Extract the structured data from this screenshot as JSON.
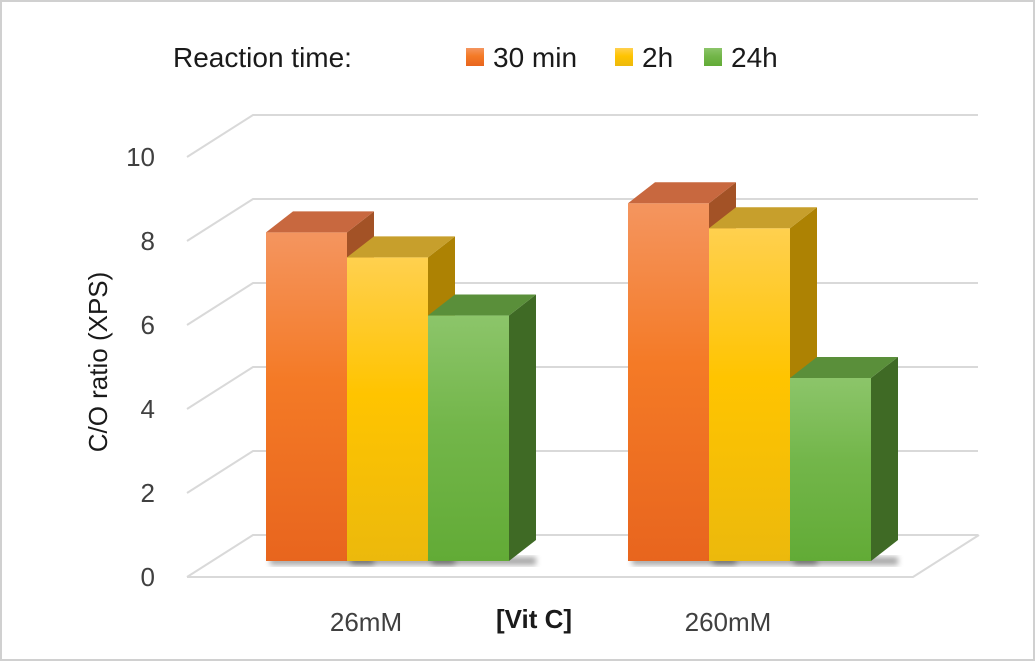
{
  "chart_data": {
    "type": "bar",
    "style": "3d-clustered-column",
    "legend_title": "Reaction time:",
    "categories": [
      "26mM",
      "260mM"
    ],
    "series": [
      {
        "name": "30 min",
        "values": [
          7.9,
          8.6
        ],
        "color": "#f07a2c",
        "top_color": "#c8683f",
        "side_color": "#a35226"
      },
      {
        "name": "2h",
        "values": [
          7.3,
          8.0
        ],
        "color": "#ffc526",
        "top_color": "#c79f2c",
        "side_color": "#ad8203"
      },
      {
        "name": "24h",
        "values": [
          5.9,
          4.4
        ],
        "color": "#76b94a",
        "top_color": "#5a8f3a",
        "side_color": "#3f6a25"
      }
    ],
    "xlabel": "[Vit C]",
    "ylabel": "C/O ratio (XPS)",
    "ylim": [
      0,
      10
    ],
    "yticks": [
      "0",
      "2",
      "4",
      "6",
      "8",
      "10"
    ],
    "grid": true,
    "legend_position": "top"
  }
}
